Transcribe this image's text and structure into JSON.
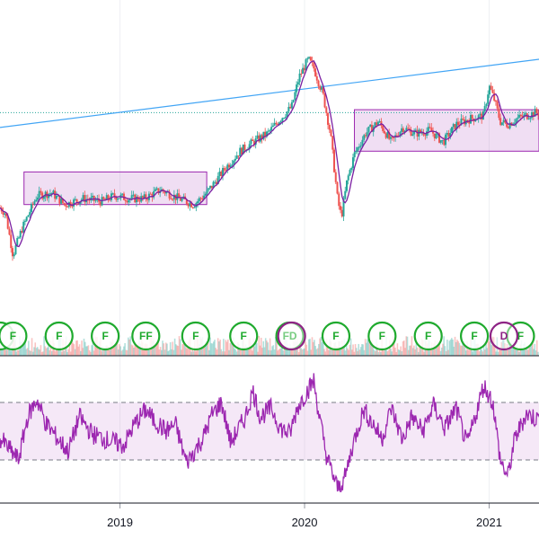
{
  "chart_data": [
    {
      "type": "candlestick",
      "x_ticks": [
        "2019",
        "2020",
        "2021"
      ],
      "x_range": [
        2018.35,
        2021.27
      ],
      "y_range": [
        0,
        100
      ],
      "reference_level": 62,
      "trendline": {
        "from": [
          2018.35,
          57
        ],
        "to": [
          2021.27,
          80
        ]
      },
      "consolidation_boxes": [
        {
          "x": [
            2018.48,
            2019.47
          ],
          "y": [
            31,
            42
          ]
        },
        {
          "x": [
            2020.27,
            2021.27
          ],
          "y": [
            49,
            63
          ]
        }
      ],
      "price_path": [
        [
          2018.35,
          30
        ],
        [
          2018.38,
          28
        ],
        [
          2018.42,
          14
        ],
        [
          2018.47,
          23
        ],
        [
          2018.55,
          34
        ],
        [
          2018.63,
          35
        ],
        [
          2018.7,
          31
        ],
        [
          2018.8,
          33
        ],
        [
          2018.9,
          32
        ],
        [
          2018.97,
          34
        ],
        [
          2019.05,
          33
        ],
        [
          2019.13,
          33
        ],
        [
          2019.22,
          36
        ],
        [
          2019.32,
          33
        ],
        [
          2019.4,
          31
        ],
        [
          2019.47,
          35
        ],
        [
          2019.58,
          44
        ],
        [
          2019.65,
          49
        ],
        [
          2019.72,
          52
        ],
        [
          2019.8,
          55
        ],
        [
          2019.87,
          60
        ],
        [
          2019.93,
          64
        ],
        [
          2019.97,
          74
        ],
        [
          2020.02,
          80
        ],
        [
          2020.05,
          77
        ],
        [
          2020.1,
          68
        ],
        [
          2020.14,
          55
        ],
        [
          2020.18,
          32
        ],
        [
          2020.2,
          27
        ],
        [
          2020.23,
          39
        ],
        [
          2020.27,
          48
        ],
        [
          2020.33,
          55
        ],
        [
          2020.4,
          59
        ],
        [
          2020.47,
          52
        ],
        [
          2020.53,
          57
        ],
        [
          2020.6,
          55
        ],
        [
          2020.68,
          56
        ],
        [
          2020.75,
          52
        ],
        [
          2020.82,
          58
        ],
        [
          2020.9,
          60
        ],
        [
          2020.97,
          61
        ],
        [
          2021.0,
          71
        ],
        [
          2021.03,
          66
        ],
        [
          2021.06,
          59
        ],
        [
          2021.1,
          58
        ],
        [
          2021.15,
          60
        ],
        [
          2021.2,
          61
        ],
        [
          2021.25,
          62
        ]
      ]
    },
    {
      "type": "events",
      "y_range": [
        0,
        1
      ],
      "earnings": [
        {
          "x": 2018.35,
          "label": ""
        },
        {
          "x": 2018.42,
          "label": "F"
        },
        {
          "x": 2018.67,
          "label": "F"
        },
        {
          "x": 2018.92,
          "label": "F"
        },
        {
          "x": 2019.14,
          "label": "FF"
        },
        {
          "x": 2019.41,
          "label": "F"
        },
        {
          "x": 2019.67,
          "label": "F"
        },
        {
          "x": 2019.92,
          "label": "FD"
        },
        {
          "x": 2020.17,
          "label": "F"
        },
        {
          "x": 2020.42,
          "label": "F"
        },
        {
          "x": 2020.67,
          "label": "F"
        },
        {
          "x": 2020.92,
          "label": "F"
        },
        {
          "x": 2021.17,
          "label": "F"
        }
      ],
      "dividends": [
        {
          "x": 2019.93,
          "label": ""
        },
        {
          "x": 2021.08,
          "label": "D"
        }
      ]
    },
    {
      "type": "line",
      "name": "oscillator",
      "y_range": [
        0,
        100
      ],
      "upper_band": 70,
      "lower_band": 30,
      "series": [
        [
          2018.35,
          45
        ],
        [
          2018.45,
          30
        ],
        [
          2018.5,
          60
        ],
        [
          2018.55,
          72
        ],
        [
          2018.6,
          55
        ],
        [
          2018.68,
          42
        ],
        [
          2018.72,
          36
        ],
        [
          2018.78,
          60
        ],
        [
          2018.85,
          48
        ],
        [
          2018.93,
          44
        ],
        [
          2019.02,
          40
        ],
        [
          2019.08,
          55
        ],
        [
          2019.14,
          65
        ],
        [
          2019.18,
          58
        ],
        [
          2019.25,
          50
        ],
        [
          2019.3,
          55
        ],
        [
          2019.36,
          28
        ],
        [
          2019.45,
          45
        ],
        [
          2019.5,
          62
        ],
        [
          2019.55,
          70
        ],
        [
          2019.6,
          42
        ],
        [
          2019.68,
          60
        ],
        [
          2019.72,
          78
        ],
        [
          2019.76,
          60
        ],
        [
          2019.82,
          66
        ],
        [
          2019.87,
          52
        ],
        [
          2019.92,
          48
        ],
        [
          2019.96,
          66
        ],
        [
          2020.0,
          75
        ],
        [
          2020.05,
          85
        ],
        [
          2020.08,
          60
        ],
        [
          2020.12,
          32
        ],
        [
          2020.18,
          10
        ],
        [
          2020.22,
          18
        ],
        [
          2020.26,
          40
        ],
        [
          2020.32,
          65
        ],
        [
          2020.37,
          55
        ],
        [
          2020.42,
          45
        ],
        [
          2020.47,
          66
        ],
        [
          2020.53,
          44
        ],
        [
          2020.58,
          60
        ],
        [
          2020.64,
          50
        ],
        [
          2020.7,
          68
        ],
        [
          2020.76,
          52
        ],
        [
          2020.82,
          66
        ],
        [
          2020.88,
          40
        ],
        [
          2020.92,
          58
        ],
        [
          2020.97,
          82
        ],
        [
          2021.02,
          70
        ],
        [
          2021.06,
          30
        ],
        [
          2021.1,
          18
        ],
        [
          2021.14,
          45
        ],
        [
          2021.2,
          62
        ],
        [
          2021.27,
          58
        ]
      ]
    }
  ]
}
